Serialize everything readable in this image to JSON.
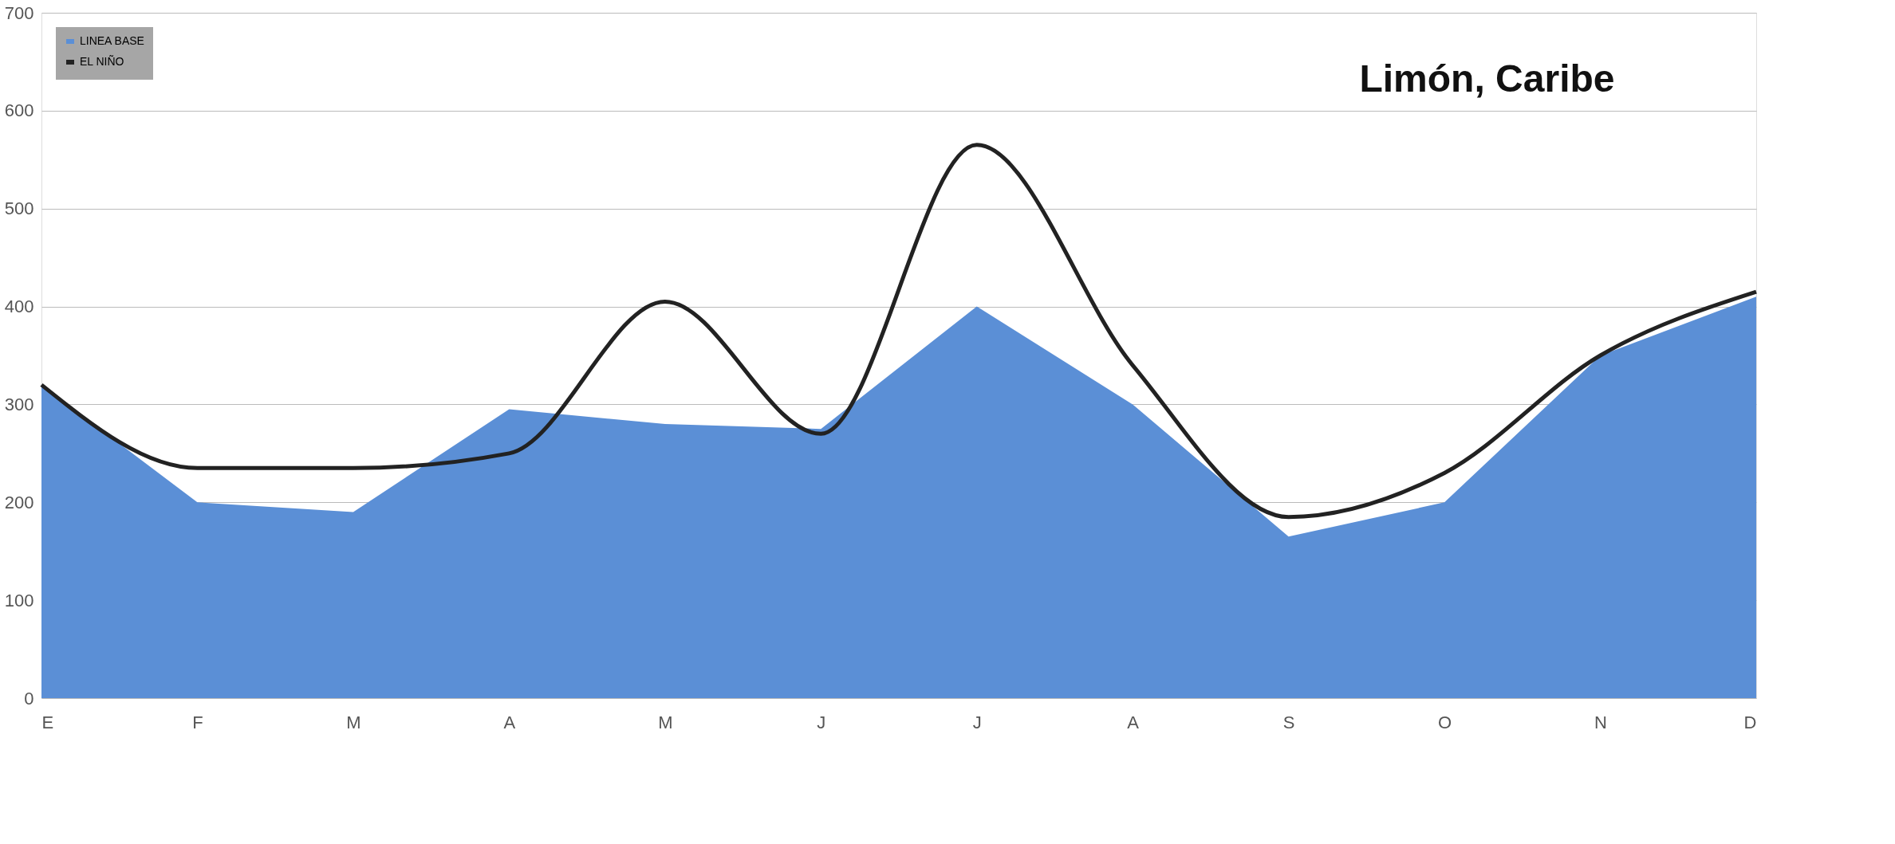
{
  "chart_data": {
    "type": "area",
    "title": "Limón, Caribe",
    "categories": [
      "E",
      "F",
      "M",
      "A",
      "M",
      "J",
      "J",
      "A",
      "S",
      "O",
      "N",
      "D"
    ],
    "series": [
      {
        "name": "LINEA BASE",
        "type": "area",
        "color": "#5b8fd6",
        "values": [
          320,
          200,
          190,
          295,
          280,
          275,
          400,
          300,
          165,
          200,
          350,
          410
        ]
      },
      {
        "name": "EL NIÑO",
        "type": "line",
        "color": "#222222",
        "values": [
          320,
          235,
          235,
          250,
          405,
          270,
          565,
          340,
          185,
          230,
          350,
          415
        ]
      }
    ],
    "ylim": [
      0,
      700
    ],
    "yticks": [
      0,
      100,
      200,
      300,
      400,
      500,
      600,
      700
    ],
    "grid": "y",
    "legend": "top left"
  }
}
